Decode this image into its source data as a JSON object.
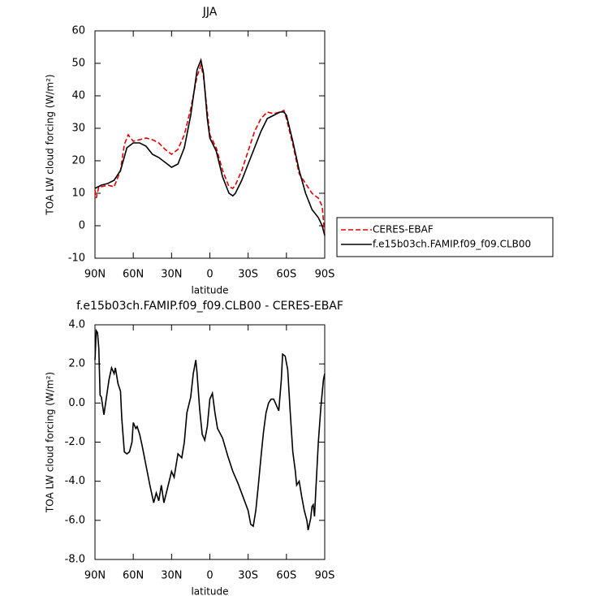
{
  "chart_data": [
    {
      "type": "line",
      "title": "JJA",
      "xlabel": "latitude",
      "ylabel": "TOA LW cloud forcing (W/m²)",
      "xlim": [
        90,
        -90
      ],
      "ylim": [
        -10,
        60
      ],
      "xticks": [
        {
          "value": 90,
          "label": "90N"
        },
        {
          "value": 60,
          "label": "60N"
        },
        {
          "value": 30,
          "label": "30N"
        },
        0,
        {
          "value": -30,
          "label": "30S"
        },
        {
          "value": -60,
          "label": "60S"
        },
        {
          "value": -90,
          "label": "90S"
        }
      ],
      "yticks": [
        -10,
        0,
        10,
        20,
        30,
        40,
        50,
        60
      ],
      "legend": "right",
      "series": [
        {
          "name": "CERES-EBAF",
          "color": "#e00000",
          "linestyle": "dashed",
          "x": [
            90,
            89,
            87,
            85,
            80,
            75,
            70,
            67,
            64,
            60,
            55,
            50,
            45,
            40,
            35,
            30,
            25,
            20,
            15,
            10,
            7,
            5,
            2,
            0,
            -5,
            -10,
            -15,
            -18,
            -20,
            -25,
            -30,
            -35,
            -40,
            -45,
            -50,
            -55,
            -58,
            -60,
            -65,
            -70,
            -75,
            -80,
            -85,
            -88,
            -90
          ],
          "values": [
            11,
            8.5,
            12,
            12,
            12.5,
            12,
            17,
            25,
            28,
            26,
            26.5,
            27,
            26.5,
            25.5,
            23.5,
            22,
            23.5,
            28,
            36,
            46,
            49.5,
            46,
            35,
            28,
            24,
            17,
            12,
            11.5,
            12.5,
            17,
            23,
            29,
            33,
            35,
            34.5,
            35,
            35.5,
            33,
            25,
            16,
            13,
            10,
            8.5,
            6,
            -3
          ]
        },
        {
          "name": "f.e15b03ch.FAMIP.f09_f09.CLB00",
          "color": "#000000",
          "linestyle": "solid",
          "x": [
            90,
            85,
            80,
            75,
            70,
            65,
            60,
            55,
            50,
            45,
            40,
            35,
            30,
            25,
            20,
            15,
            10,
            7,
            5,
            2,
            0,
            -5,
            -10,
            -15,
            -18,
            -20,
            -25,
            -30,
            -35,
            -40,
            -45,
            -50,
            -55,
            -58,
            -60,
            -65,
            -70,
            -75,
            -80,
            -85,
            -88,
            -90
          ],
          "values": [
            11.5,
            12.5,
            13,
            14,
            17,
            24,
            25.5,
            25.5,
            24.5,
            22,
            21,
            19.5,
            18,
            19,
            24,
            34,
            48,
            51,
            47,
            33,
            27,
            23,
            15,
            10,
            9.2,
            10,
            14,
            19,
            24,
            29,
            33,
            34,
            35,
            35,
            34,
            26,
            17,
            10,
            5,
            2.5,
            0,
            -3
          ]
        }
      ]
    },
    {
      "type": "line",
      "title": "f.e15b03ch.FAMIP.f09_f09.CLB00 - CERES-EBAF",
      "xlabel": "latitude",
      "ylabel": "TOA LW cloud forcing (W/m²)",
      "xlim": [
        90,
        -90
      ],
      "ylim": [
        -8,
        4
      ],
      "xticks": [
        {
          "value": 90,
          "label": "90N"
        },
        {
          "value": 60,
          "label": "60N"
        },
        {
          "value": 30,
          "label": "30N"
        },
        0,
        {
          "value": -30,
          "label": "30S"
        },
        {
          "value": -60,
          "label": "60S"
        },
        {
          "value": -90,
          "label": "90S"
        }
      ],
      "yticks": [
        {
          "value": -8,
          "label": "-8.0"
        },
        {
          "value": -6,
          "label": "-6.0"
        },
        {
          "value": -4,
          "label": "-4.0"
        },
        {
          "value": -2,
          "label": "-2.0"
        },
        {
          "value": 0,
          "label": "0.0"
        },
        {
          "value": 2,
          "label": "2.0"
        },
        {
          "value": 4,
          "label": "4.0"
        }
      ],
      "series": [
        {
          "color": "#000000",
          "linestyle": "solid",
          "x": [
            90,
            89,
            88,
            87,
            86,
            85,
            83,
            81,
            79,
            77,
            75,
            74,
            72,
            70,
            69,
            67,
            65,
            63,
            61,
            60,
            58,
            57,
            55,
            53,
            50,
            47,
            44,
            42,
            40,
            38,
            36,
            33,
            30,
            28,
            25,
            22,
            20,
            18,
            15,
            13,
            11,
            10,
            8,
            6,
            4,
            2,
            0,
            -2,
            -4,
            -6,
            -10,
            -14,
            -18,
            -22,
            -26,
            -30,
            -32,
            -34,
            -36,
            -38,
            -40,
            -42,
            -44,
            -46,
            -48,
            -50,
            -52,
            -54,
            -56,
            -57,
            -59,
            -61,
            -63,
            -65,
            -67,
            -68,
            -70,
            -72,
            -74,
            -76,
            -77,
            -79,
            -80,
            -81,
            -82,
            -83,
            -85,
            -87,
            -89,
            -90
          ],
          "values": [
            2.2,
            3.7,
            3.6,
            2.8,
            0.4,
            0.3,
            -0.6,
            0.3,
            1.2,
            1.8,
            1.5,
            1.8,
            1.0,
            0.6,
            -0.8,
            -2.5,
            -2.6,
            -2.5,
            -2.0,
            -1.0,
            -1.3,
            -1.2,
            -1.6,
            -2.2,
            -3.2,
            -4.2,
            -5.1,
            -4.6,
            -5.0,
            -4.2,
            -5.1,
            -4.3,
            -3.5,
            -3.8,
            -2.6,
            -2.8,
            -2.0,
            -0.5,
            0.3,
            1.5,
            2.2,
            1.5,
            -0.3,
            -1.6,
            -1.9,
            -1.2,
            0.2,
            0.5,
            -0.5,
            -1.3,
            -1.8,
            -2.7,
            -3.5,
            -4.1,
            -4.8,
            -5.5,
            -6.2,
            -6.3,
            -5.5,
            -4.2,
            -2.8,
            -1.5,
            -0.5,
            0.0,
            0.2,
            0.2,
            -0.1,
            -0.4,
            1.2,
            2.5,
            2.4,
            1.7,
            -0.5,
            -2.5,
            -3.5,
            -4.2,
            -4.0,
            -4.8,
            -5.5,
            -6.0,
            -6.5,
            -5.9,
            -5.3,
            -5.2,
            -5.8,
            -4.5,
            -2.0,
            -0.2,
            1.2,
            1.5
          ]
        }
      ]
    }
  ]
}
